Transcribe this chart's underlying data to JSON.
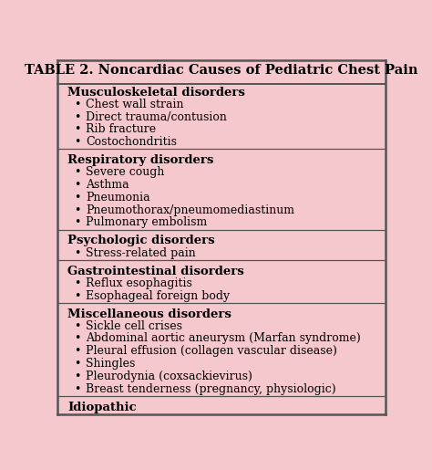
{
  "title": "TABLE 2. Noncardiac Causes of Pediatric Chest Pain",
  "background_color": "#f4c8cc",
  "border_color": "#555555",
  "text_color": "#000000",
  "sections": [
    {
      "header": "Musculoskeletal disorders",
      "items": [
        "Chest wall strain",
        "Direct trauma/contusion",
        "Rib fracture",
        "Costochondritis"
      ]
    },
    {
      "header": "Respiratory disorders",
      "items": [
        "Severe cough",
        "Asthma",
        "Pneumonia",
        "Pneumothorax/pneumomediastinum",
        "Pulmonary embolism"
      ]
    },
    {
      "header": "Psychologic disorders",
      "items": [
        "Stress-related pain"
      ]
    },
    {
      "header": "Gastrointestinal disorders",
      "items": [
        "Reflux esophagitis",
        "Esophageal foreign body"
      ]
    },
    {
      "header": "Miscellaneous disorders",
      "items": [
        "Sickle cell crises",
        "Abdominal aortic aneurysm (Marfan syndrome)",
        "Pleural effusion (collagen vascular disease)",
        "Shingles",
        "Pleurodynia (coxsackievirus)",
        "Breast tenderness (pregnancy, physiologic)"
      ]
    },
    {
      "header": "Idiopathic",
      "items": []
    }
  ],
  "title_fontsize": 10.5,
  "header_fontsize": 9.5,
  "item_fontsize": 9.0,
  "fig_width": 4.74,
  "fig_height": 5.15,
  "dpi": 100
}
